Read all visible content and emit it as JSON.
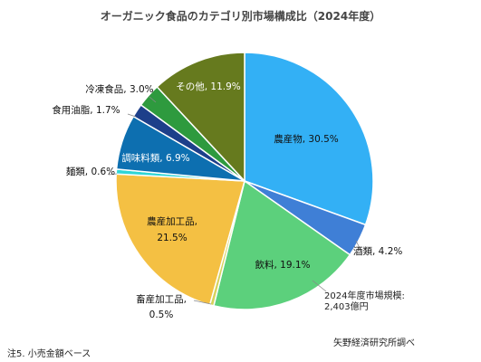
{
  "chart_data": {
    "type": "pie",
    "title": "オーガニック食品のカテゴリ別市場構成比（2024年度）",
    "slices": [
      {
        "name": "農産物",
        "value": 30.5,
        "label": "農産物, 30.5%",
        "color": "#33b0f5"
      },
      {
        "name": "酒類",
        "value": 4.2,
        "label": "酒類, 4.2%",
        "color": "#3f7fd6"
      },
      {
        "name": "飲料",
        "value": 19.1,
        "label": "飲料, 19.1%",
        "color": "#5cd07c"
      },
      {
        "name": "畜産加工品",
        "value": 0.5,
        "label": "畜産加工品,",
        "label2": "0.5%",
        "color": "#d6d25c"
      },
      {
        "name": "農産加工品",
        "value": 21.5,
        "label": "農産加工品,",
        "label2": "21.5%",
        "color": "#f4c043"
      },
      {
        "name": "麺類",
        "value": 0.6,
        "label": "麺類, 0.6%",
        "color": "#2fd5d5"
      },
      {
        "name": "調味料類",
        "value": 6.9,
        "label": "調味料類, 6.9%",
        "color": "#0d6fb0"
      },
      {
        "name": "食用油脂",
        "value": 1.7,
        "label": "食用油脂, 1.7%",
        "color": "#1d3f8a"
      },
      {
        "name": "冷凍食品",
        "value": 3.0,
        "label": "冷凍食品, 3.0%",
        "color": "#2e9a3e"
      },
      {
        "name": "その他",
        "value": 11.9,
        "label": "その他, 11.9%",
        "color": "#667a1e"
      }
    ]
  },
  "annotations": {
    "total_line1": "2024年度市場規模:",
    "total_line2": "2,403億円",
    "source": "矢野経済研究所調べ",
    "note": "注5. 小売金額ベース"
  }
}
